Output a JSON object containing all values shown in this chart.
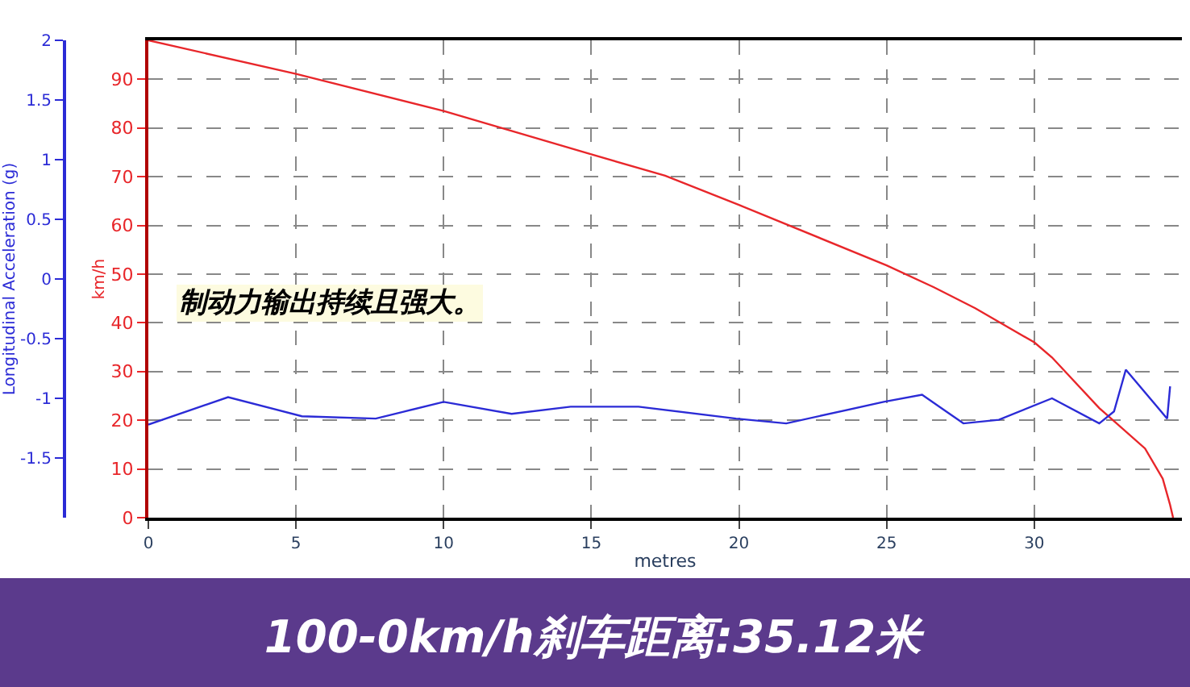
{
  "chart_data": {
    "type": "line",
    "xlabel": "metres",
    "ylabel": "km/h",
    "y2label": "Longitudinal Acceleration (g)",
    "annotations": [
      "制动力输出持续且强大。",
      "100-0km/h刹车距离:35.12米"
    ],
    "series": [
      {
        "color": "#e8262a",
        "x": [
          0,
          5,
          10,
          15,
          17.5,
          20,
          25,
          26.6,
          28,
          30,
          30.6,
          32.2,
          33.75,
          34.35,
          34.6,
          34.7
        ],
        "values": [
          98,
          91.1,
          83.5,
          74.6,
          70.2,
          64.2,
          51.8,
          47.3,
          43,
          36,
          32.9,
          22.5,
          14.2,
          8,
          2.6,
          0
        ]
      },
      {
        "color": "#2b2bd6",
        "axis": "y2",
        "x": [
          0,
          2.7,
          5.2,
          7.7,
          10,
          12.3,
          14.3,
          16.6,
          19.9,
          21.6,
          24.9,
          26.2,
          27.6,
          28.8,
          30.6,
          32.2,
          32.7,
          33.1,
          34.5,
          34.6
        ],
        "values": [
          -1.22,
          -0.99,
          -1.15,
          -1.17,
          -1.03,
          -1.13,
          -1.07,
          -1.07,
          -1.17,
          -1.21,
          -1.03,
          -0.97,
          -1.21,
          -1.18,
          -1.0,
          -1.21,
          -1.11,
          -0.76,
          -1.17,
          -0.9
        ]
      }
    ],
    "xlim": [
      0,
      35
    ],
    "xticks": [
      0,
      5,
      10,
      15,
      20,
      25,
      30
    ],
    "ylim": [
      0,
      98
    ],
    "yticks": [
      0,
      10,
      20,
      30,
      40,
      50,
      60,
      70,
      80,
      90
    ],
    "y2lim": [
      -2,
      2
    ],
    "y2ticks": [
      -1.5,
      -1,
      -0.5,
      0,
      0.5,
      1,
      1.5,
      2
    ],
    "grid": true,
    "line_style": "solid",
    "marker": "none"
  }
}
